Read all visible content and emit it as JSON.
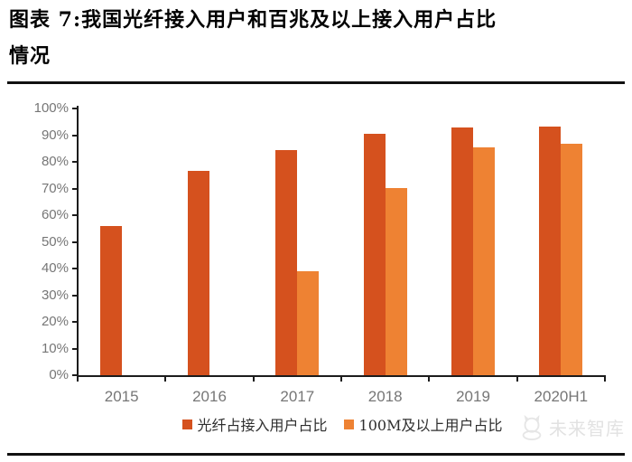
{
  "figure": {
    "title_line1": "图表 7:我国光纤接入用户和百兆及以上接入用户占比",
    "title_line2": "情况"
  },
  "watermark": {
    "text": "未来智库"
  },
  "chart_data": {
    "type": "bar",
    "title": "我国光纤接入用户和百兆及以上接入用户占比情况",
    "categories": [
      "2015",
      "2016",
      "2017",
      "2018",
      "2019",
      "2020H1"
    ],
    "series": [
      {
        "name": "光纤占接入用户占比",
        "color": "#d5511e",
        "values": [
          56,
          76.5,
          84.3,
          90.4,
          92.9,
          93.2
        ]
      },
      {
        "name": "100M及以上用户占比",
        "color": "#ee8233",
        "values": [
          null,
          null,
          38.9,
          70.3,
          85.4,
          86.8
        ]
      }
    ],
    "xlabel": "",
    "ylabel": "",
    "ylim": [
      0,
      100
    ],
    "ytick_labels": [
      "0%",
      "10%",
      "20%",
      "30%",
      "40%",
      "50%",
      "60%",
      "70%",
      "80%",
      "90%",
      "100%"
    ],
    "grid": false,
    "legend_position": "bottom",
    "axis_color": "#1c1c1c",
    "tick_label_color": "#767676"
  }
}
